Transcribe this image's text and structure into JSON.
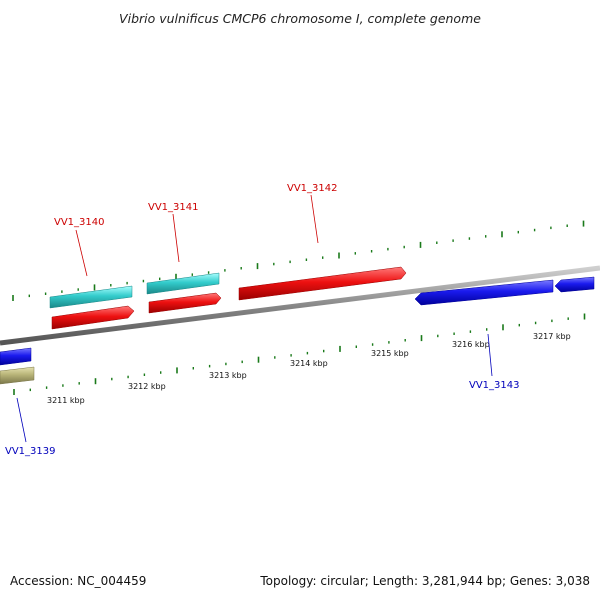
{
  "header": {
    "title": "Vibrio vulnificus CMCP6 chromosome I, complete genome"
  },
  "footer": {
    "accession": "Accession: NC_004459",
    "summary": "Topology: circular; Length: 3,281,944 bp; Genes: 3,038"
  },
  "ruler": {
    "labels": [
      "3211 kbp",
      "3212 kbp",
      "3213 kbp",
      "3214 kbp",
      "3215 kbp",
      "3216 kbp",
      "3217 kbp"
    ]
  },
  "genes": {
    "vv1_3139": "VV1_3139",
    "vv1_3140": "VV1_3140",
    "vv1_3141": "VV1_3141",
    "vv1_3142": "VV1_3142",
    "vv1_3143": "VV1_3143"
  },
  "colors": {
    "forward_gene": "#ee1111",
    "reverse_gene": "#1a1aee",
    "rna_feature": "#33cccc",
    "other_feature": "#b8b478",
    "backbone": "#888888",
    "tick": "#1a7a1a",
    "label_forward": "#cc0000",
    "label_reverse": "#0000bb"
  }
}
